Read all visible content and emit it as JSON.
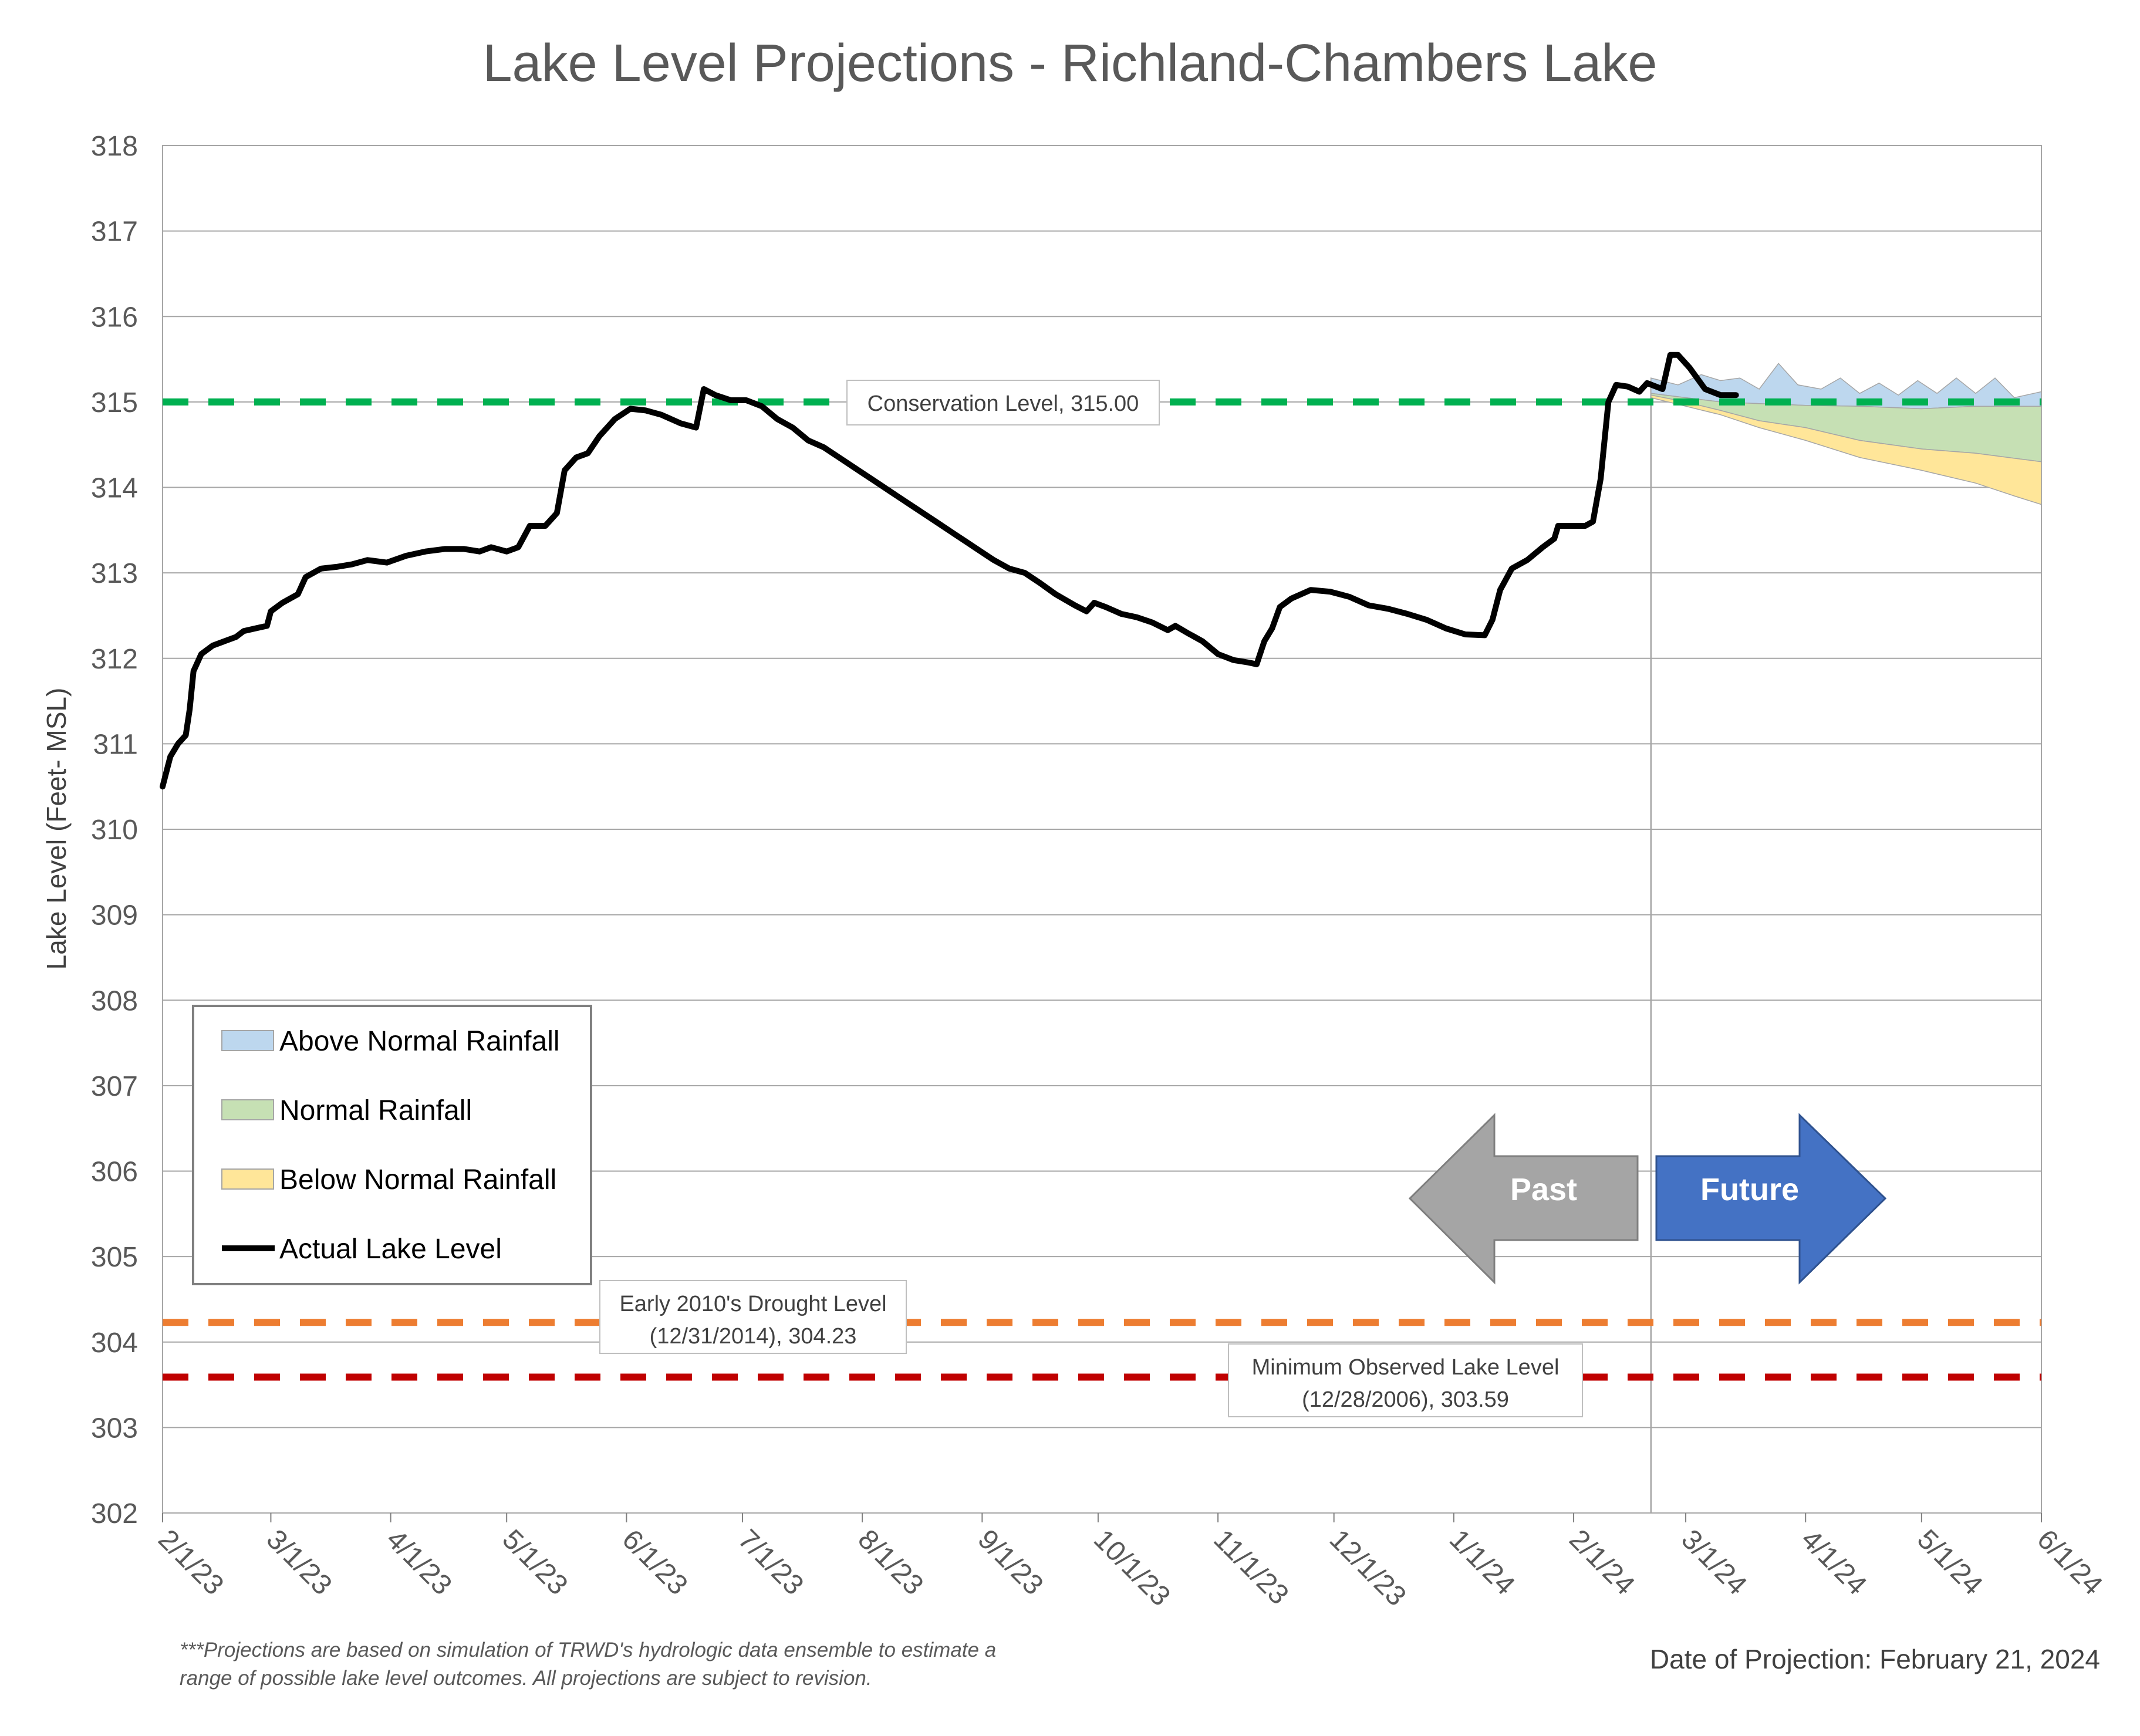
{
  "chart_data": {
    "type": "line",
    "title": "Lake Level Projections - Richland-Chambers Lake",
    "ylabel": "Lake Level (Feet- MSL)",
    "xlabel": "",
    "ylim": [
      302,
      318
    ],
    "yticks": [
      302,
      303,
      304,
      305,
      306,
      307,
      308,
      309,
      310,
      311,
      312,
      313,
      314,
      315,
      316,
      317,
      318
    ],
    "xlim": [
      "2023-02-01",
      "2024-06-01"
    ],
    "xticks": [
      {
        "date": "2023-02-01",
        "label": "2/1/23"
      },
      {
        "date": "2023-03-01",
        "label": "3/1/23"
      },
      {
        "date": "2023-04-01",
        "label": "4/1/23"
      },
      {
        "date": "2023-05-01",
        "label": "5/1/23"
      },
      {
        "date": "2023-06-01",
        "label": "6/1/23"
      },
      {
        "date": "2023-07-01",
        "label": "7/1/23"
      },
      {
        "date": "2023-08-01",
        "label": "8/1/23"
      },
      {
        "date": "2023-09-01",
        "label": "9/1/23"
      },
      {
        "date": "2023-10-01",
        "label": "10/1/23"
      },
      {
        "date": "2023-11-01",
        "label": "11/1/23"
      },
      {
        "date": "2023-12-01",
        "label": "12/1/23"
      },
      {
        "date": "2024-01-01",
        "label": "1/1/24"
      },
      {
        "date": "2024-02-01",
        "label": "2/1/24"
      },
      {
        "date": "2024-03-01",
        "label": "3/1/24"
      },
      {
        "date": "2024-04-01",
        "label": "4/1/24"
      },
      {
        "date": "2024-05-01",
        "label": "5/1/24"
      },
      {
        "date": "2024-06-01",
        "label": "6/1/24"
      }
    ],
    "grid": true,
    "projection_date": "2024-02-21",
    "reference_lines": [
      {
        "label": "Conservation Level, 315.00",
        "value": 315.0,
        "color": "#00B050"
      },
      {
        "label_lines": [
          "Early 2010's Drought Level",
          "(12/31/2014), 304.23"
        ],
        "value": 304.23,
        "color": "#ED7D31"
      },
      {
        "label_lines": [
          "Minimum Observed Lake Level",
          "(12/28/2006), 303.59"
        ],
        "value": 303.59,
        "color": "#C00000"
      }
    ],
    "series": [
      {
        "name": "Actual Lake Level",
        "color": "#000000",
        "points": [
          [
            "2023-02-01",
            310.5
          ],
          [
            "2023-02-03",
            310.85
          ],
          [
            "2023-02-05",
            311.0
          ],
          [
            "2023-02-07",
            311.1
          ],
          [
            "2023-02-08",
            311.4
          ],
          [
            "2023-02-09",
            311.85
          ],
          [
            "2023-02-11",
            312.05
          ],
          [
            "2023-02-14",
            312.15
          ],
          [
            "2023-02-17",
            312.2
          ],
          [
            "2023-02-20",
            312.25
          ],
          [
            "2023-02-22",
            312.32
          ],
          [
            "2023-02-25",
            312.35
          ],
          [
            "2023-02-28",
            312.38
          ],
          [
            "2023-03-01",
            312.55
          ],
          [
            "2023-03-04",
            312.65
          ],
          [
            "2023-03-08",
            312.75
          ],
          [
            "2023-03-10",
            312.95
          ],
          [
            "2023-03-14",
            313.05
          ],
          [
            "2023-03-18",
            313.07
          ],
          [
            "2023-03-22",
            313.1
          ],
          [
            "2023-03-26",
            313.15
          ],
          [
            "2023-03-31",
            313.12
          ],
          [
            "2023-04-05",
            313.2
          ],
          [
            "2023-04-10",
            313.25
          ],
          [
            "2023-04-15",
            313.28
          ],
          [
            "2023-04-20",
            313.28
          ],
          [
            "2023-04-24",
            313.25
          ],
          [
            "2023-04-27",
            313.3
          ],
          [
            "2023-05-01",
            313.25
          ],
          [
            "2023-05-04",
            313.3
          ],
          [
            "2023-05-07",
            313.55
          ],
          [
            "2023-05-11",
            313.55
          ],
          [
            "2023-05-14",
            313.7
          ],
          [
            "2023-05-16",
            314.2
          ],
          [
            "2023-05-19",
            314.35
          ],
          [
            "2023-05-22",
            314.4
          ],
          [
            "2023-05-25",
            314.6
          ],
          [
            "2023-05-29",
            314.8
          ],
          [
            "2023-06-02",
            314.92
          ],
          [
            "2023-06-06",
            314.9
          ],
          [
            "2023-06-10",
            314.85
          ],
          [
            "2023-06-15",
            314.75
          ],
          [
            "2023-06-19",
            314.7
          ],
          [
            "2023-06-21",
            315.15
          ],
          [
            "2023-06-24",
            315.08
          ],
          [
            "2023-06-28",
            315.02
          ],
          [
            "2023-07-02",
            315.02
          ],
          [
            "2023-07-06",
            314.95
          ],
          [
            "2023-07-10",
            314.8
          ],
          [
            "2023-07-14",
            314.7
          ],
          [
            "2023-07-18",
            314.55
          ],
          [
            "2023-07-22",
            314.47
          ],
          [
            "2023-07-26",
            314.35
          ],
          [
            "2023-07-31",
            314.2
          ],
          [
            "2023-08-05",
            314.05
          ],
          [
            "2023-08-10",
            313.9
          ],
          [
            "2023-08-15",
            313.75
          ],
          [
            "2023-08-20",
            313.6
          ],
          [
            "2023-08-25",
            313.45
          ],
          [
            "2023-08-30",
            313.3
          ],
          [
            "2023-09-04",
            313.15
          ],
          [
            "2023-09-08",
            313.05
          ],
          [
            "2023-09-12",
            313.0
          ],
          [
            "2023-09-16",
            312.88
          ],
          [
            "2023-09-20",
            312.75
          ],
          [
            "2023-09-25",
            312.62
          ],
          [
            "2023-09-28",
            312.55
          ],
          [
            "2023-09-30",
            312.65
          ],
          [
            "2023-10-03",
            312.6
          ],
          [
            "2023-10-07",
            312.52
          ],
          [
            "2023-10-11",
            312.48
          ],
          [
            "2023-10-15",
            312.42
          ],
          [
            "2023-10-19",
            312.33
          ],
          [
            "2023-10-21",
            312.38
          ],
          [
            "2023-10-24",
            312.3
          ],
          [
            "2023-10-28",
            312.2
          ],
          [
            "2023-11-01",
            312.05
          ],
          [
            "2023-11-05",
            311.98
          ],
          [
            "2023-11-09",
            311.95
          ],
          [
            "2023-11-11",
            311.93
          ],
          [
            "2023-11-13",
            312.2
          ],
          [
            "2023-11-15",
            312.35
          ],
          [
            "2023-11-17",
            312.6
          ],
          [
            "2023-11-20",
            312.7
          ],
          [
            "2023-11-25",
            312.8
          ],
          [
            "2023-11-30",
            312.78
          ],
          [
            "2023-12-05",
            312.72
          ],
          [
            "2023-12-10",
            312.62
          ],
          [
            "2023-12-15",
            312.58
          ],
          [
            "2023-12-20",
            312.52
          ],
          [
            "2023-12-25",
            312.45
          ],
          [
            "2023-12-30",
            312.35
          ],
          [
            "2024-01-04",
            312.28
          ],
          [
            "2024-01-09",
            312.27
          ],
          [
            "2024-01-11",
            312.45
          ],
          [
            "2024-01-13",
            312.8
          ],
          [
            "2024-01-16",
            313.05
          ],
          [
            "2024-01-20",
            313.15
          ],
          [
            "2024-01-24",
            313.3
          ],
          [
            "2024-01-27",
            313.4
          ],
          [
            "2024-01-28",
            313.55
          ],
          [
            "2024-01-31",
            313.55
          ],
          [
            "2024-02-04",
            313.55
          ],
          [
            "2024-02-06",
            313.6
          ],
          [
            "2024-02-08",
            314.1
          ],
          [
            "2024-02-10",
            315.0
          ],
          [
            "2024-02-12",
            315.2
          ],
          [
            "2024-02-15",
            315.18
          ],
          [
            "2024-02-18",
            315.12
          ],
          [
            "2024-02-20",
            315.22
          ],
          [
            "2024-02-24",
            315.15
          ],
          [
            "2024-02-26",
            315.55
          ],
          [
            "2024-02-28",
            315.55
          ],
          [
            "2024-03-02",
            315.4
          ],
          [
            "2024-03-06",
            315.15
          ],
          [
            "2024-03-10",
            315.08
          ],
          [
            "2024-03-14",
            315.08
          ]
        ]
      },
      {
        "name": "Above Normal Rainfall",
        "color": "#BDD7EE",
        "points": [
          [
            "2024-02-21",
            315.28
          ],
          [
            "2024-02-28",
            315.2
          ],
          [
            "2024-03-05",
            315.32
          ],
          [
            "2024-03-10",
            315.25
          ],
          [
            "2024-03-15",
            315.28
          ],
          [
            "2024-03-20",
            315.15
          ],
          [
            "2024-03-25",
            315.45
          ],
          [
            "2024-03-30",
            315.2
          ],
          [
            "2024-04-05",
            315.15
          ],
          [
            "2024-04-10",
            315.28
          ],
          [
            "2024-04-15",
            315.1
          ],
          [
            "2024-04-20",
            315.22
          ],
          [
            "2024-04-25",
            315.08
          ],
          [
            "2024-04-30",
            315.25
          ],
          [
            "2024-05-05",
            315.1
          ],
          [
            "2024-05-10",
            315.28
          ],
          [
            "2024-05-15",
            315.1
          ],
          [
            "2024-05-20",
            315.28
          ],
          [
            "2024-05-25",
            315.05
          ],
          [
            "2024-06-01",
            315.12
          ]
        ]
      },
      {
        "name": "Normal Rainfall",
        "color": "#C6E0B4",
        "points": [
          [
            "2024-02-21",
            315.1
          ],
          [
            "2024-03-01",
            315.05
          ],
          [
            "2024-03-10",
            315.0
          ],
          [
            "2024-03-20",
            314.98
          ],
          [
            "2024-04-01",
            314.96
          ],
          [
            "2024-04-15",
            314.95
          ],
          [
            "2024-05-01",
            314.92
          ],
          [
            "2024-05-15",
            314.95
          ],
          [
            "2024-06-01",
            314.95
          ]
        ]
      },
      {
        "name": "Below Normal Rainfall",
        "color": "#FFE699",
        "points": [
          [
            "2024-02-21",
            315.08
          ],
          [
            "2024-03-01",
            315.0
          ],
          [
            "2024-03-10",
            314.9
          ],
          [
            "2024-03-20",
            314.78
          ],
          [
            "2024-04-01",
            314.7
          ],
          [
            "2024-04-15",
            314.55
          ],
          [
            "2024-05-01",
            314.45
          ],
          [
            "2024-05-15",
            314.4
          ],
          [
            "2024-06-01",
            314.3
          ]
        ]
      },
      {
        "name": "Below Normal Rainfall (low bound)",
        "color": "#FFE699",
        "points": [
          [
            "2024-02-21",
            315.05
          ],
          [
            "2024-03-01",
            314.95
          ],
          [
            "2024-03-10",
            314.85
          ],
          [
            "2024-03-20",
            314.7
          ],
          [
            "2024-04-01",
            314.55
          ],
          [
            "2024-04-15",
            314.35
          ],
          [
            "2024-05-01",
            314.2
          ],
          [
            "2024-05-15",
            314.05
          ],
          [
            "2024-05-25",
            313.9
          ],
          [
            "2024-06-01",
            313.8
          ]
        ]
      }
    ],
    "legend": {
      "placement": "lower-left",
      "entries": [
        {
          "label": "Above Normal Rainfall",
          "color": "#BDD7EE"
        },
        {
          "label": "Normal Rainfall",
          "color": "#C6E0B4"
        },
        {
          "label": "Below Normal Rainfall",
          "color": "#FFE699"
        },
        {
          "label": "Actual Lake Level",
          "color": "#000000"
        }
      ]
    },
    "arrows": {
      "past": "Past",
      "future": "Future",
      "past_color": "#A5A5A5",
      "future_color": "#4472C4"
    },
    "footnote_lines": [
      "***Projections are based on simulation of TRWD's hydrologic data ensemble to estimate a",
      "range of possible lake level outcomes.  All projections are subject to revision."
    ],
    "projection_text": "Date of Projection: February 21, 2024"
  }
}
